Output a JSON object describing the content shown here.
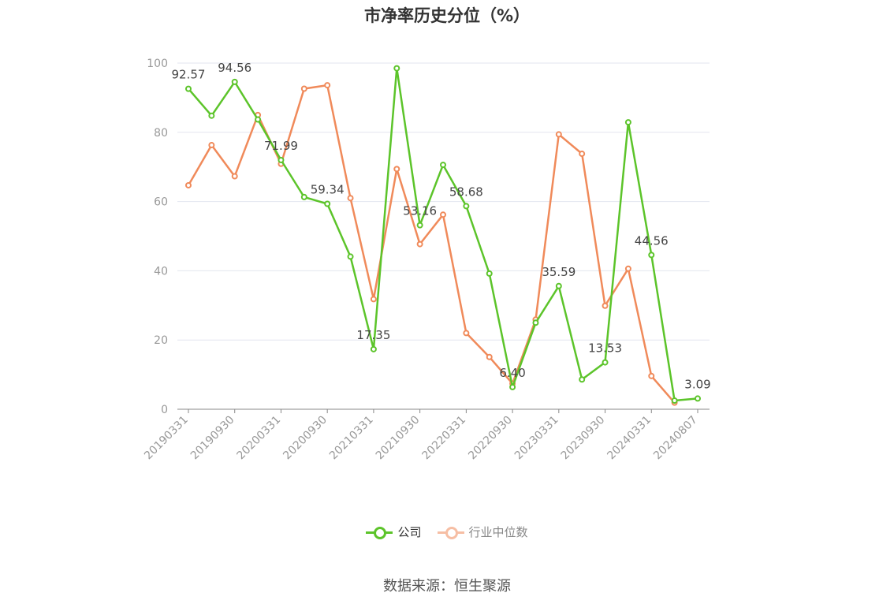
{
  "chart_data": {
    "type": "line",
    "title": "市净率历史分位（%）",
    "xlabel": "",
    "ylabel": "",
    "ylim": [
      0,
      100
    ],
    "yticks": [
      0,
      20,
      40,
      60,
      80,
      100
    ],
    "x": [
      "20190331",
      "20190630",
      "20190930",
      "20191231",
      "20200331",
      "20200630",
      "20200930",
      "20201231",
      "20210331",
      "20210630",
      "20210930",
      "20211231",
      "20220331",
      "20220630",
      "20220930",
      "20221231",
      "20230331",
      "20230630",
      "20230930",
      "20231231",
      "20240331",
      "20240630",
      "20240807"
    ],
    "xtick_labels": [
      "20190331",
      "20190930",
      "20200331",
      "20200930",
      "20210331",
      "20210930",
      "20220331",
      "20220930",
      "20230331",
      "20230930",
      "20240331",
      "20240807"
    ],
    "grid": true,
    "legend_position": "bottom",
    "series": [
      {
        "name": "公司",
        "color": "#5cc42a",
        "values": [
          92.57,
          84.8,
          94.56,
          83.7,
          71.99,
          61.3,
          59.34,
          44.1,
          17.35,
          98.5,
          53.16,
          70.6,
          58.68,
          39.2,
          6.4,
          25.0,
          35.59,
          8.6,
          13.53,
          82.9,
          44.56,
          2.5,
          3.09
        ],
        "labeled_points": {
          "0": "92.57",
          "2": "94.56",
          "4": "71.99",
          "6": "59.34",
          "8": "17.35",
          "10": "53.16",
          "12": "58.68",
          "14": "6.40",
          "16": "35.59",
          "18": "13.53",
          "20": "44.56",
          "22": "3.09"
        }
      },
      {
        "name": "行业中位数",
        "color": "#f08a5a",
        "values": [
          64.7,
          76.3,
          67.3,
          85.0,
          70.9,
          92.6,
          93.6,
          61.0,
          31.8,
          69.4,
          47.7,
          56.2,
          22.0,
          15.1,
          7.4,
          25.9,
          79.4,
          73.8,
          29.9,
          40.6,
          9.6,
          1.9,
          null
        ]
      }
    ]
  },
  "source_label": "数据来源：恒生聚源"
}
